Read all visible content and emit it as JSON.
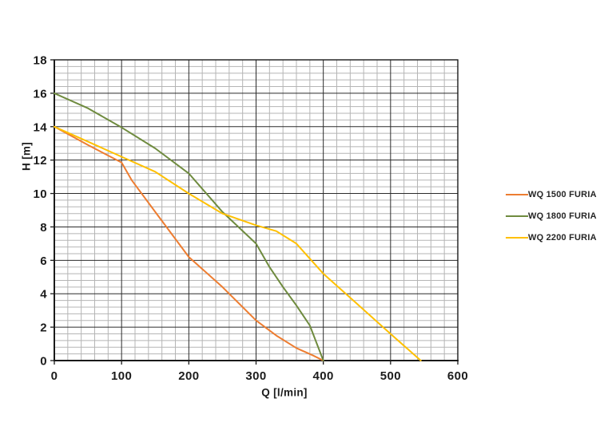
{
  "page": {
    "background": "#ffffff"
  },
  "chart_data": {
    "type": "line",
    "title": "",
    "xlabel": "Q [l/min]",
    "ylabel": "H [m]",
    "xlim": [
      0,
      600
    ],
    "ylim": [
      0,
      18
    ],
    "x_major_step": 100,
    "x_minor_step": 20,
    "y_major_step": 2,
    "y_minor_step": 0.4,
    "x_ticks": [
      0,
      100,
      200,
      300,
      400,
      500,
      600
    ],
    "y_ticks": [
      0,
      2,
      4,
      6,
      8,
      10,
      12,
      14,
      16,
      18
    ],
    "grid": {
      "minor_color": "#b5b5b5",
      "major_color": "#2b2b2b",
      "frame_color": "#1a1a1a",
      "grid_on": true
    },
    "legend_position": "right",
    "series": [
      {
        "name": "WQ 1500 FURIA",
        "color": "#ED7D31",
        "points": [
          [
            0,
            14
          ],
          [
            50,
            12.9
          ],
          [
            100,
            11.85
          ],
          [
            115,
            10.8
          ],
          [
            150,
            8.9
          ],
          [
            200,
            6.2
          ],
          [
            250,
            4.4
          ],
          [
            300,
            2.4
          ],
          [
            330,
            1.5
          ],
          [
            360,
            0.75
          ],
          [
            385,
            0.3
          ],
          [
            400,
            0
          ]
        ]
      },
      {
        "name": "WQ 1800 FURIA",
        "color": "#6F8B3F",
        "points": [
          [
            0,
            16
          ],
          [
            50,
            15.1
          ],
          [
            100,
            13.95
          ],
          [
            150,
            12.7
          ],
          [
            200,
            11.2
          ],
          [
            250,
            8.9
          ],
          [
            300,
            7.0
          ],
          [
            320,
            5.6
          ],
          [
            340,
            4.4
          ],
          [
            360,
            3.3
          ],
          [
            380,
            2.1
          ],
          [
            400,
            0
          ]
        ]
      },
      {
        "name": "WQ 2200 FURIA",
        "color": "#FFC000",
        "points": [
          [
            0,
            14
          ],
          [
            50,
            13.1
          ],
          [
            100,
            12.2
          ],
          [
            150,
            11.3
          ],
          [
            200,
            10.0
          ],
          [
            250,
            8.8
          ],
          [
            300,
            8.1
          ],
          [
            330,
            7.75
          ],
          [
            360,
            7.0
          ],
          [
            400,
            5.2
          ],
          [
            450,
            3.4
          ],
          [
            500,
            1.6
          ],
          [
            545,
            0
          ]
        ]
      }
    ]
  }
}
